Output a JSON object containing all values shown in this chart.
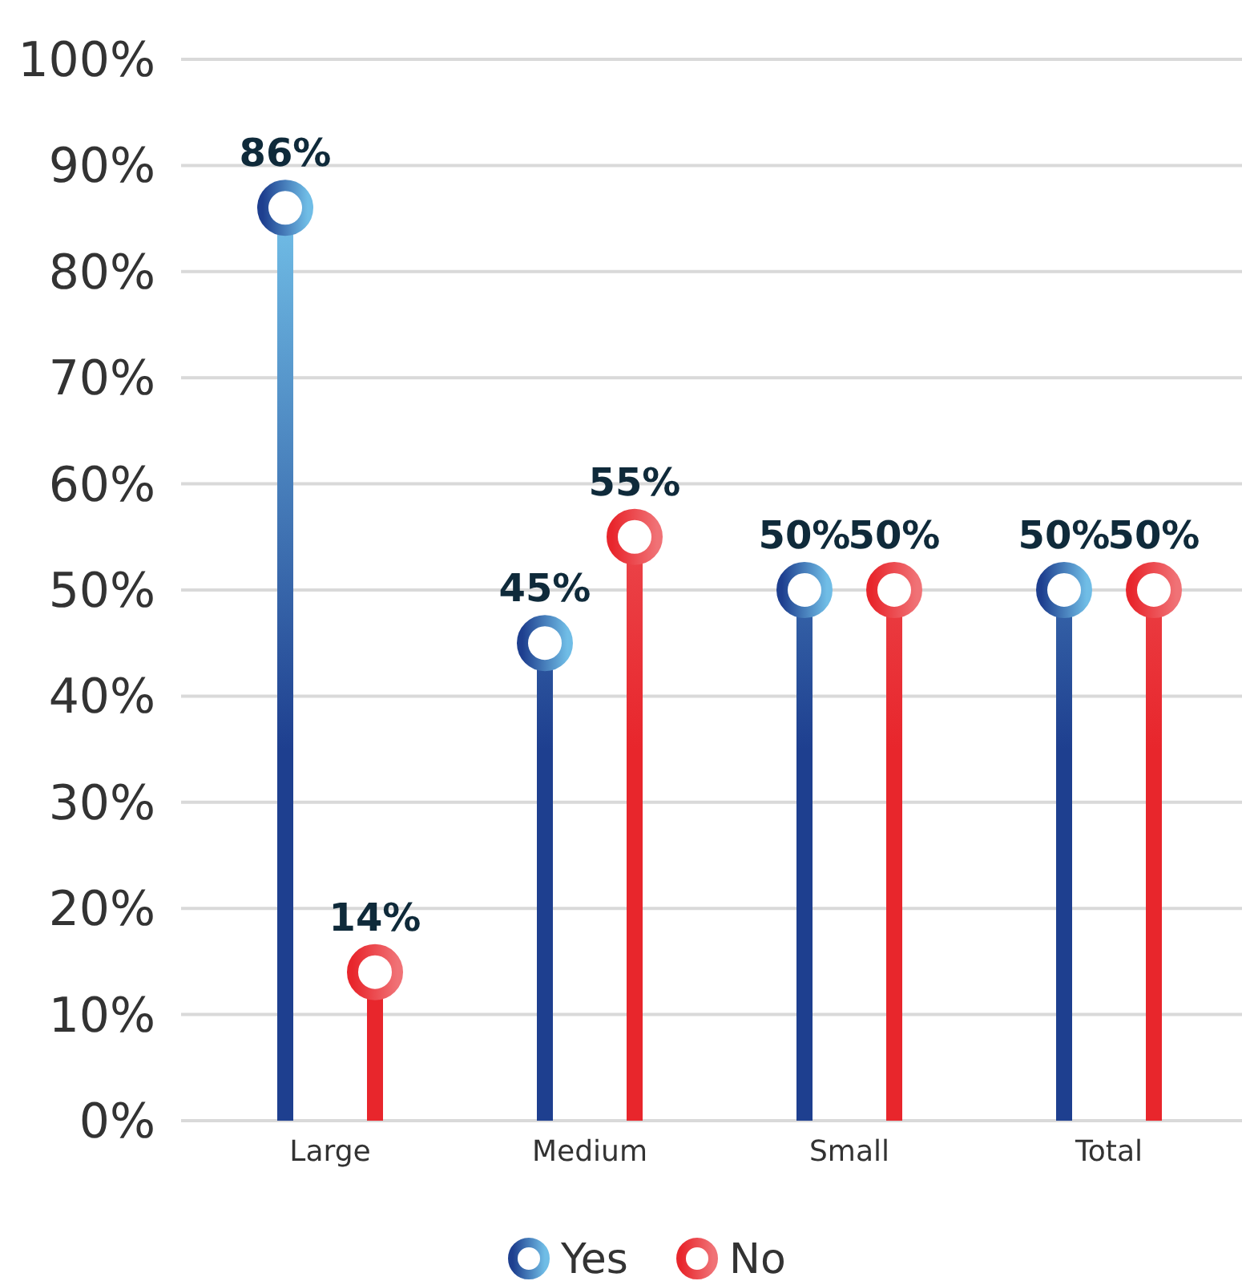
{
  "chart_data": {
    "type": "lollipop",
    "categories": [
      "Large",
      "Medium",
      "Small",
      "Total"
    ],
    "series": [
      {
        "name": "Yes",
        "color": "#1e3f8f",
        "values": [
          86,
          45,
          50,
          50
        ],
        "value_labels": [
          "86%",
          "45%",
          "50%",
          "50%"
        ]
      },
      {
        "name": "No",
        "color": "#e8262c",
        "values": [
          14,
          55,
          50,
          50
        ],
        "value_labels": [
          "14%",
          "55%",
          "50%",
          "50%"
        ]
      }
    ],
    "ylim": [
      0,
      100
    ],
    "yticks": [
      {
        "value": 0,
        "label": "0%"
      },
      {
        "value": 10,
        "label": "10%"
      },
      {
        "value": 20,
        "label": "20%"
      },
      {
        "value": 30,
        "label": "30%"
      },
      {
        "value": 40,
        "label": "40%"
      },
      {
        "value": 50,
        "label": "50%"
      },
      {
        "value": 60,
        "label": "60%"
      },
      {
        "value": 70,
        "label": "70%"
      },
      {
        "value": 80,
        "label": "80%"
      },
      {
        "value": 90,
        "label": "90%"
      },
      {
        "value": 100,
        "label": "100%"
      }
    ],
    "grid": "y",
    "legend": "bottom",
    "marker": "circle"
  }
}
